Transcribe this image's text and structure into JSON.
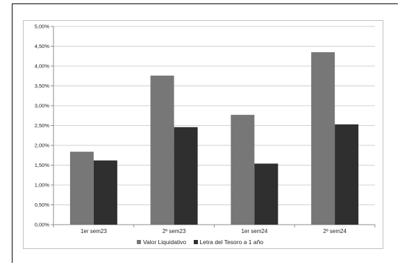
{
  "chart_data": {
    "type": "bar",
    "categories": [
      "1er sem23",
      "2º sem23",
      "1er sem24",
      "2º sem24"
    ],
    "series": [
      {
        "name": "Valor Liquidativo",
        "values": [
          1.84,
          3.76,
          2.77,
          4.35
        ],
        "color": "#777777"
      },
      {
        "name": "Letra del Tesoro a 1 año",
        "values": [
          1.62,
          2.46,
          1.54,
          2.53
        ],
        "color": "#2f2f2f"
      }
    ],
    "title": "",
    "xlabel": "",
    "ylabel": "",
    "ylim": [
      0,
      5
    ],
    "yticks": [
      "0,00%",
      "0,50%",
      "1,00%",
      "1,50%",
      "2,00%",
      "2,50%",
      "3,00%",
      "3,50%",
      "4,00%",
      "4,50%",
      "5,00%"
    ],
    "grid": true,
    "legend_position": "bottom"
  }
}
